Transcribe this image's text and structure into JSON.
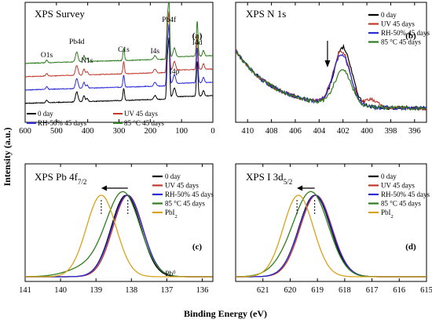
{
  "figure": {
    "ylabel": "Intensity (a.u.)",
    "xlabel": "Binding Energy (eV)"
  },
  "chart_data": [
    {
      "panel": "(a)",
      "type": "line",
      "title": "XPS Survey",
      "xlim": [
        600,
        0
      ],
      "reversed_x": true,
      "xticks": [
        "600",
        "500",
        "400",
        "300",
        "200",
        "100",
        "0"
      ],
      "y_ticks_shown": false,
      "legend": "bottom, two columns",
      "peak_labels": [
        {
          "text": "O1s",
          "x": 531
        },
        {
          "text": "Pb4d",
          "x": 435
        },
        {
          "text": "N1s",
          "x": 402
        },
        {
          "text": "C1s",
          "x": 285
        },
        {
          "text": "I4s",
          "x": 185
        },
        {
          "text": "Pb4f",
          "x": 140
        },
        {
          "text": "I4p",
          "x": 123
        },
        {
          "text": "I4d",
          "x": 50
        }
      ],
      "series": [
        {
          "name": "0 day",
          "color": "#000000",
          "offset": 0
        },
        {
          "name": "UV 45 days",
          "color": "#c0392b",
          "offset": 2
        },
        {
          "name": "RH-50% 45 days",
          "color": "#2b2bd6",
          "offset": 1
        },
        {
          "name": "85 °C 45 days",
          "color": "#2e7d1e",
          "offset": 3
        }
      ]
    },
    {
      "panel": "(b)",
      "type": "line",
      "title": "XPS N 1s",
      "xlim": [
        411,
        395
      ],
      "reversed_x": true,
      "xticks": [
        "410",
        "408",
        "406",
        "404",
        "402",
        "400",
        "398",
        "396"
      ],
      "legend": "top-right",
      "arrow_at": 403.3,
      "series": [
        {
          "name": "0 day",
          "color": "#000000",
          "peak_center": 402.0,
          "peak_height": 1.0
        },
        {
          "name": "UV 45 days",
          "color": "#c0392b",
          "peak_center": 402.1,
          "peak_height": 0.92
        },
        {
          "name": "RH-50% 45 days",
          "color": "#2b2bd6",
          "peak_center": 402.1,
          "peak_height": 0.88
        },
        {
          "name": "85 °C 45 days",
          "color": "#2e7d1e",
          "peak_center": 402.0,
          "peak_height": 0.6
        }
      ]
    },
    {
      "panel": "(c)",
      "type": "line",
      "title": "XPS Pb 4f",
      "title_sub": "7/2",
      "xlim": [
        141,
        135.7
      ],
      "reversed_x": true,
      "xticks": [
        "141",
        "140",
        "139",
        "138",
        "137",
        "136"
      ],
      "legend": "top-right",
      "arrow_from": 138.1,
      "arrow_to": 138.85,
      "annotation": {
        "text": "Pb",
        "sup": "0",
        "x": 136.9
      },
      "series": [
        {
          "name": "0 day",
          "color": "#000000",
          "center": 138.15,
          "width": 0.42
        },
        {
          "name": "UV 45 days",
          "color": "#c0392b",
          "center": 138.1,
          "width": 0.42
        },
        {
          "name": "RH-50% 45 days",
          "color": "#2b2bd6",
          "center": 138.12,
          "width": 0.43
        },
        {
          "name": "85 °C 45 days",
          "color": "#2e7d1e",
          "center": 138.22,
          "width": 0.47
        },
        {
          "name": "PbI",
          "name_sub": "2",
          "color": "#d9a21b",
          "center": 138.85,
          "width": 0.42
        }
      ]
    },
    {
      "panel": "(d)",
      "type": "line",
      "title": "XPS I 3d",
      "title_sub": "5/2",
      "xlim": [
        622,
        615
      ],
      "reversed_x": true,
      "xticks": [
        "621",
        "620",
        "619",
        "618",
        "617",
        "616",
        "615"
      ],
      "legend": "top-right",
      "arrow_from": 619.1,
      "arrow_to": 619.75,
      "series": [
        {
          "name": "0 day",
          "color": "#000000",
          "center": 619.1,
          "width": 0.58
        },
        {
          "name": "UV 45 days",
          "color": "#c0392b",
          "center": 619.05,
          "width": 0.58
        },
        {
          "name": "RH-50% 45 days",
          "color": "#2b2bd6",
          "center": 619.08,
          "width": 0.59
        },
        {
          "name": "85 °C 45 days",
          "color": "#2e7d1e",
          "center": 619.2,
          "width": 0.62
        },
        {
          "name": "PbI",
          "name_sub": "2",
          "color": "#d9a21b",
          "center": 619.7,
          "width": 0.55
        }
      ]
    }
  ]
}
